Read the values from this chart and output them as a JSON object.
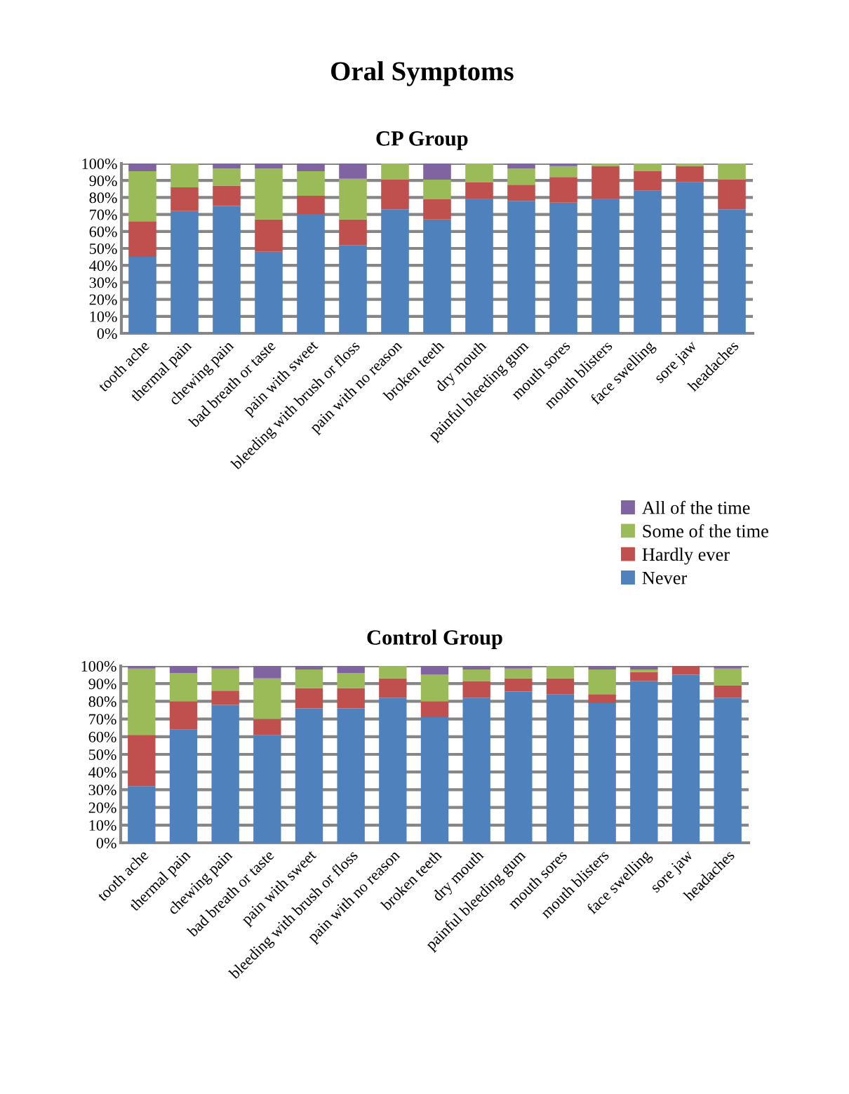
{
  "chart_data": [
    {
      "type": "bar",
      "stacked": true,
      "title": "Oral Symptoms",
      "subtitle": "CP Group",
      "categories": [
        "tooth ache",
        "thermal pain",
        "chewing pain",
        "bad breath or taste",
        "pain with sweet",
        "bleeding with brush or floss",
        "pain with no reason",
        "broken teeth",
        "dry mouth",
        "painful bleeding gum",
        "mouth sores",
        "mouth blisters",
        "face swelling",
        "sore jaw",
        "headaches"
      ],
      "series": [
        {
          "name": "Never",
          "color": "#4f81bd",
          "values": [
            45,
            72,
            75,
            48,
            70,
            52,
            73,
            67,
            79,
            78,
            77,
            79,
            84,
            89,
            73
          ]
        },
        {
          "name": "Hardly ever",
          "color": "#c0504d",
          "values": [
            21,
            14,
            12,
            19,
            11,
            15,
            17.5,
            12,
            10,
            9.5,
            15,
            19.5,
            11.5,
            9.5,
            17.5
          ]
        },
        {
          "name": "Some of the time",
          "color": "#9bbb59",
          "values": [
            29.5,
            14,
            10,
            30,
            14.5,
            24,
            9.5,
            11.5,
            11,
            9.5,
            6.5,
            1.5,
            4.5,
            1.5,
            9.5
          ]
        },
        {
          "name": "All of the time",
          "color": "#8064a2",
          "values": [
            4.5,
            0,
            3,
            3,
            4.5,
            9,
            0,
            9.5,
            0,
            3,
            1.5,
            0,
            0,
            0,
            0
          ]
        }
      ],
      "ylim": [
        0,
        100
      ],
      "yticks": [
        {
          "value": 0,
          "label": "0%"
        },
        {
          "value": 10,
          "label": "10%"
        },
        {
          "value": 20,
          "label": "20%"
        },
        {
          "value": 30,
          "label": "30%"
        },
        {
          "value": 40,
          "label": "40%"
        },
        {
          "value": 50,
          "label": "50%"
        },
        {
          "value": 60,
          "label": "60%"
        },
        {
          "value": 70,
          "label": "70%"
        },
        {
          "value": 80,
          "label": "80%"
        },
        {
          "value": 90,
          "label": "90%"
        },
        {
          "value": 100,
          "label": "100%"
        }
      ],
      "grid": "y",
      "legend": "bottom right"
    },
    {
      "type": "bar",
      "stacked": true,
      "title": "Control Group",
      "categories": [
        "tooth ache",
        "thermal pain",
        "chewing pain",
        "bad breath or taste",
        "pain with sweet",
        "bleeding with brush or floss",
        "pain with no reason",
        "broken teeth",
        "dry mouth",
        "painful bleeding gum",
        "mouth sores",
        "mouth blisters",
        "face swelling",
        "sore jaw",
        "headaches"
      ],
      "series": [
        {
          "color": "#4f81bd",
          "values": [
            32,
            64,
            78,
            61,
            76,
            76,
            82,
            71,
            82,
            85.5,
            84,
            79,
            91.5,
            95,
            82
          ]
        },
        {
          "color": "#c0504d",
          "values": [
            29,
            16,
            8,
            9,
            11.5,
            11.5,
            11,
            9,
            9.5,
            7.5,
            9,
            5,
            5,
            5,
            7
          ]
        },
        {
          "color": "#9bbb59",
          "values": [
            37.5,
            16,
            12.5,
            23,
            10.5,
            8.5,
            7,
            15,
            6.5,
            5.5,
            7,
            14,
            1.5,
            0,
            9.5
          ]
        },
        {
          "color": "#8064a2",
          "values": [
            1.5,
            4,
            1.5,
            7,
            2,
            4,
            0,
            5,
            2,
            1.5,
            0,
            2,
            2,
            0,
            1.5
          ]
        }
      ],
      "ylim": [
        0,
        100
      ],
      "yticks": [
        {
          "value": 0,
          "label": "0%"
        },
        {
          "value": 10,
          "label": "10%"
        },
        {
          "value": 20,
          "label": "20%"
        },
        {
          "value": 30,
          "label": "30%"
        },
        {
          "value": 40,
          "label": "40%"
        },
        {
          "value": 50,
          "label": "50%"
        },
        {
          "value": 60,
          "label": "60%"
        },
        {
          "value": 70,
          "label": "70%"
        },
        {
          "value": 80,
          "label": "80%"
        },
        {
          "value": 90,
          "label": "90%"
        },
        {
          "value": 100,
          "label": "100%"
        }
      ],
      "grid": "y"
    }
  ]
}
